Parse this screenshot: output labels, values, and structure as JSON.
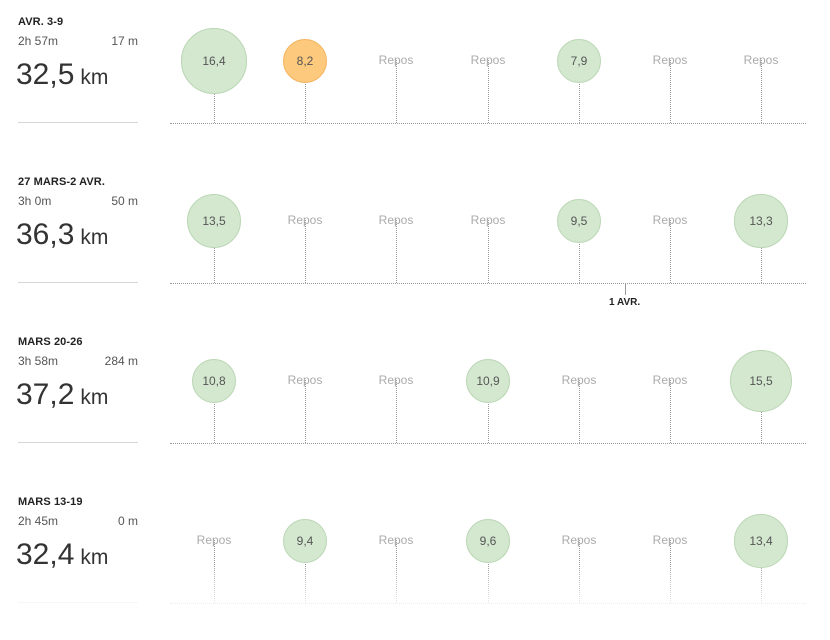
{
  "weeks": [
    {
      "label": "AVR. 3-9",
      "time": "2h 57m",
      "elevation": "17 m",
      "distance": "32,5",
      "unit": "km",
      "days": [
        {
          "value": "16,4",
          "km": 16.4,
          "type": "run"
        },
        {
          "value": "8,2",
          "km": 8.2,
          "type": "highlight"
        },
        {
          "value": "Repos",
          "km": 0,
          "type": "rest"
        },
        {
          "value": "Repos",
          "km": 0,
          "type": "rest"
        },
        {
          "value": "7,9",
          "km": 7.9,
          "type": "run"
        },
        {
          "value": "Repos",
          "km": 0,
          "type": "rest"
        },
        {
          "value": "Repos",
          "km": 0,
          "type": "rest"
        }
      ]
    },
    {
      "label": "27 MARS-2 AVR.",
      "time": "3h 0m",
      "elevation": "50 m",
      "distance": "36,3",
      "unit": "km",
      "days": [
        {
          "value": "13,5",
          "km": 13.5,
          "type": "run"
        },
        {
          "value": "Repos",
          "km": 0,
          "type": "rest"
        },
        {
          "value": "Repos",
          "km": 0,
          "type": "rest"
        },
        {
          "value": "Repos",
          "km": 0,
          "type": "rest"
        },
        {
          "value": "9,5",
          "km": 9.5,
          "type": "run"
        },
        {
          "value": "Repos",
          "km": 0,
          "type": "rest"
        },
        {
          "value": "13,3",
          "km": 13.3,
          "type": "run"
        }
      ]
    },
    {
      "label": "MARS 20-26",
      "time": "3h 58m",
      "elevation": "284 m",
      "distance": "37,2",
      "unit": "km",
      "days": [
        {
          "value": "10,8",
          "km": 10.8,
          "type": "run"
        },
        {
          "value": "Repos",
          "km": 0,
          "type": "rest"
        },
        {
          "value": "Repos",
          "km": 0,
          "type": "rest"
        },
        {
          "value": "10,9",
          "km": 10.9,
          "type": "run"
        },
        {
          "value": "Repos",
          "km": 0,
          "type": "rest"
        },
        {
          "value": "Repos",
          "km": 0,
          "type": "rest"
        },
        {
          "value": "15,5",
          "km": 15.5,
          "type": "run"
        }
      ]
    },
    {
      "label": "MARS 13-19",
      "time": "2h 45m",
      "elevation": "0 m",
      "distance": "32,4",
      "unit": "km",
      "days": [
        {
          "value": "Repos",
          "km": 0,
          "type": "rest"
        },
        {
          "value": "9,4",
          "km": 9.4,
          "type": "run"
        },
        {
          "value": "Repos",
          "km": 0,
          "type": "rest"
        },
        {
          "value": "9,6",
          "km": 9.6,
          "type": "run"
        },
        {
          "value": "Repos",
          "km": 0,
          "type": "rest"
        },
        {
          "value": "Repos",
          "km": 0,
          "type": "rest"
        },
        {
          "value": "13,4",
          "km": 13.4,
          "type": "run"
        }
      ]
    }
  ],
  "date_marker": {
    "label": "1 AVR."
  },
  "colors": {
    "run": "#d4e8d0",
    "highlight": "#fdc97d",
    "rest_text": "#aaaaaa"
  }
}
